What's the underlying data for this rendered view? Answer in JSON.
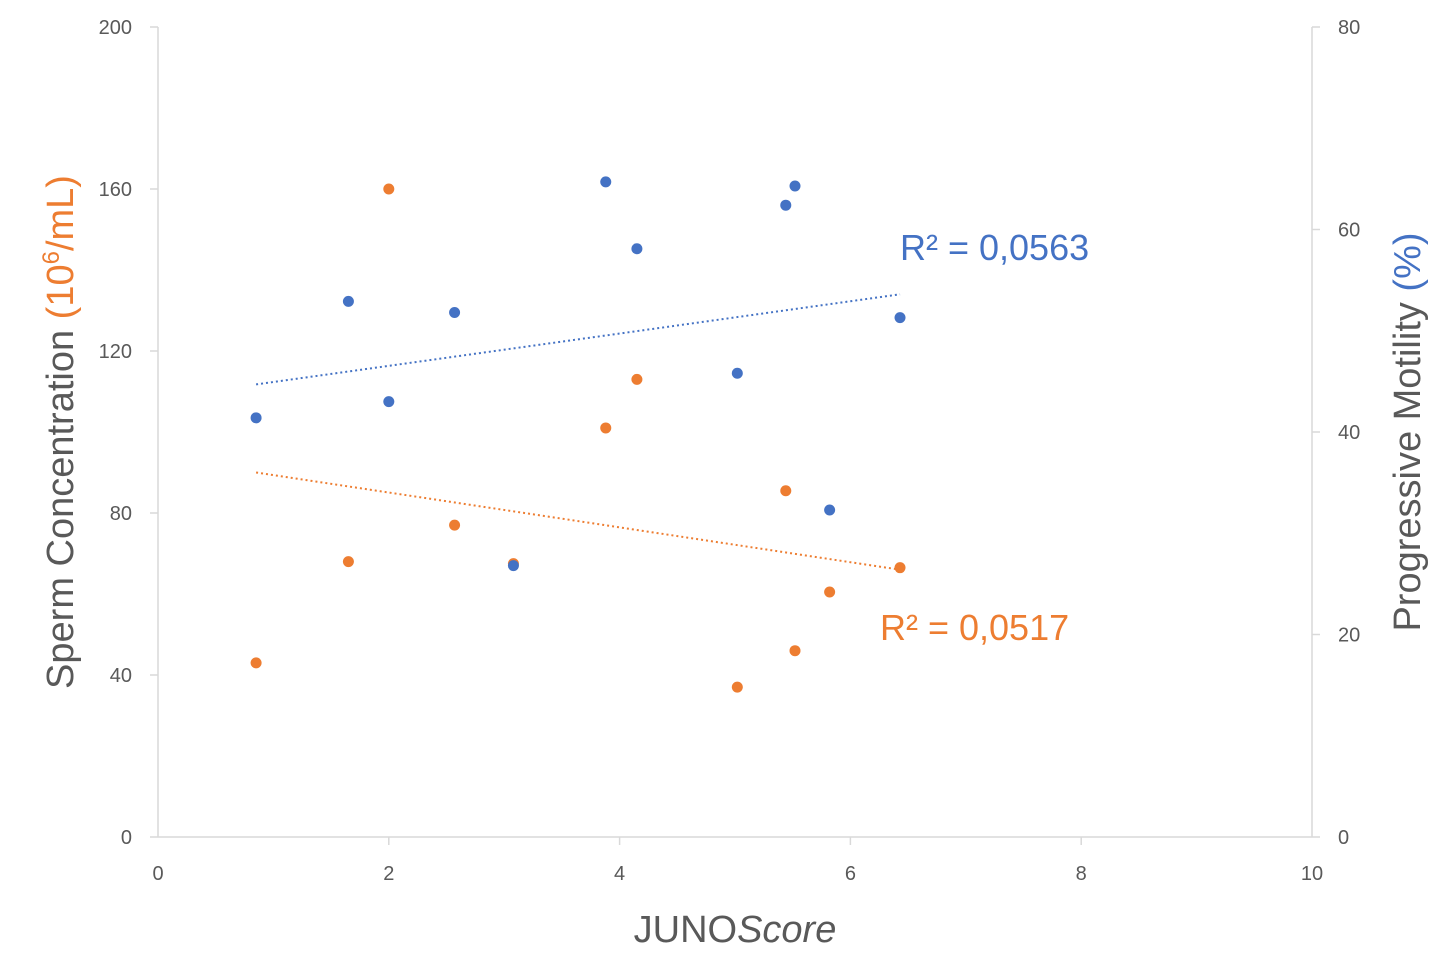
{
  "chart_data": {
    "type": "scatter",
    "xlabel": {
      "plain": "JUNO",
      "italic": "Score"
    },
    "ylabel_left": {
      "main": "Sperm Concentration",
      "unit_pre": "(10",
      "unit_sup": "6",
      "unit_post": "/mL)"
    },
    "ylabel_right": {
      "main": "Progressive Motility",
      "unit": "(%)"
    },
    "xlim": [
      0,
      10
    ],
    "x_ticks": [
      0,
      2,
      4,
      6,
      8,
      10
    ],
    "ylim_left": [
      0,
      200
    ],
    "y_ticks_left": [
      0,
      40,
      80,
      120,
      160,
      200
    ],
    "ylim_right": [
      0,
      80
    ],
    "y_ticks_right": [
      0,
      20,
      40,
      60,
      80
    ],
    "grid": false,
    "series": [
      {
        "axis": "left",
        "color": "#ED7D31",
        "points": [
          [
            0.85,
            43
          ],
          [
            1.65,
            68
          ],
          [
            2.0,
            160
          ],
          [
            2.57,
            77
          ],
          [
            3.08,
            67.5
          ],
          [
            3.88,
            101
          ],
          [
            4.15,
            113
          ],
          [
            5.02,
            37
          ],
          [
            5.44,
            85.5
          ],
          [
            5.52,
            46
          ],
          [
            5.82,
            60.5
          ],
          [
            6.43,
            66.5
          ]
        ],
        "trendline": {
          "x": [
            0.85,
            6.43
          ],
          "y": [
            90,
            66
          ],
          "r2_label": "R² = 0,0517"
        }
      },
      {
        "axis": "right",
        "color": "#4472C4",
        "points": [
          [
            0.85,
            41.4
          ],
          [
            1.65,
            52.9
          ],
          [
            2.0,
            43
          ],
          [
            2.57,
            51.8
          ],
          [
            3.08,
            26.8
          ],
          [
            3.88,
            64.7
          ],
          [
            4.15,
            58.1
          ],
          [
            5.02,
            45.8
          ],
          [
            5.44,
            62.4
          ],
          [
            5.52,
            64.3
          ],
          [
            5.82,
            32.3
          ],
          [
            6.43,
            51.3
          ]
        ],
        "trendline": {
          "x": [
            0.85,
            6.43
          ],
          "y": [
            44.7,
            53.6
          ],
          "r2_label": "R² = 0,0563"
        }
      }
    ]
  }
}
